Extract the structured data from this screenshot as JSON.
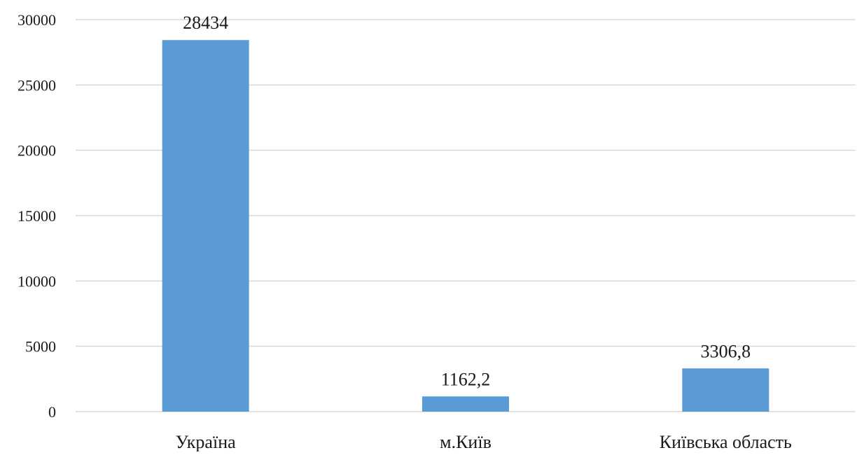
{
  "chart_data": {
    "type": "bar",
    "title": "",
    "xlabel": "",
    "ylabel": "",
    "categories": [
      "Україна",
      "м.Київ",
      "Київська область"
    ],
    "values": [
      28434,
      1162.2,
      3306.8
    ],
    "data_labels": [
      "28434",
      "1162,2",
      "3306,8"
    ],
    "ylim": [
      0,
      30000
    ],
    "yticks": [
      0,
      5000,
      10000,
      15000,
      20000,
      25000,
      30000
    ],
    "ytick_labels": [
      "0",
      "5000",
      "10000",
      "15000",
      "20000",
      "25000",
      "30000"
    ],
    "grid": true,
    "legend": "none",
    "bar_color": "#5b9bd5",
    "grid_color": "#d9d9d9"
  }
}
